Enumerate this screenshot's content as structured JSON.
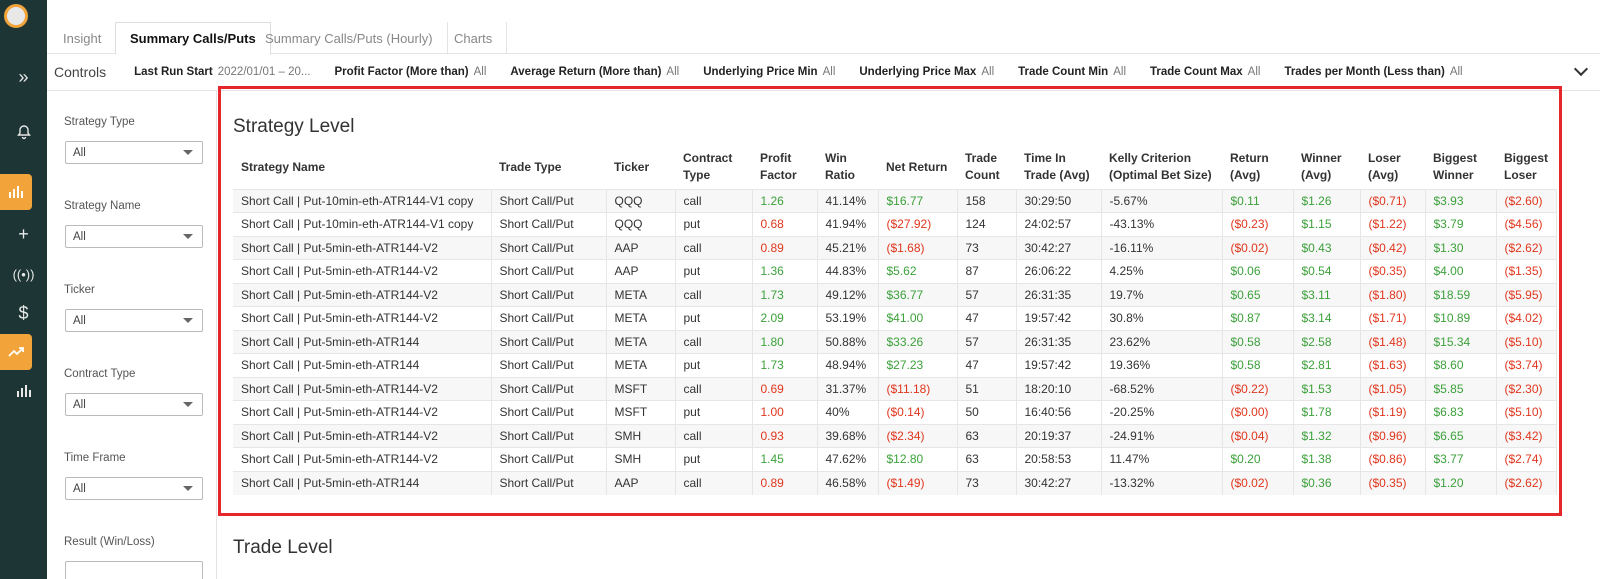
{
  "tabs": [
    "Insight",
    "Summary Calls/Puts",
    "Summary Calls/Puts (Hourly)",
    "Charts"
  ],
  "controls": {
    "title": "Controls",
    "fields": [
      {
        "label": "Last Run Start",
        "value": "2022/01/01 – 20..."
      },
      {
        "label": "Profit Factor (More than)",
        "value": "All"
      },
      {
        "label": "Average Return (More than)",
        "value": "All"
      },
      {
        "label": "Underlying Price Min",
        "value": "All"
      },
      {
        "label": "Underlying Price Max",
        "value": "All"
      },
      {
        "label": "Trade Count Min",
        "value": "All"
      },
      {
        "label": "Trade Count Max",
        "value": "All"
      },
      {
        "label": "Trades per Month (Less than)",
        "value": "All"
      }
    ]
  },
  "filters": [
    {
      "label": "Strategy Type",
      "value": "All"
    },
    {
      "label": "Strategy Name",
      "value": "All"
    },
    {
      "label": "Ticker",
      "value": "All"
    },
    {
      "label": "Contract Type",
      "value": "All"
    },
    {
      "label": "Time Frame",
      "value": "All"
    },
    {
      "label": "Result (Win/Loss)",
      "value": ""
    }
  ],
  "strategy_level": {
    "title": "Strategy Level",
    "columns": [
      "Strategy Name",
      "Trade Type",
      "Ticker",
      "Contract Type",
      "Profit Factor",
      "Win Ratio",
      "Net Return",
      "Trade Count",
      "Time In Trade (Avg)",
      "Kelly Criterion (Optimal Bet Size)",
      "Return (Avg)",
      "Winner (Avg)",
      "Loser (Avg)",
      "Biggest Winner",
      "Biggest Loser"
    ],
    "rows": [
      [
        "Short Call | Put-10min-eth-ATR144-V1 copy",
        "Short Call/Put",
        "QQQ",
        "call",
        "1.26",
        "41.14%",
        "$16.77",
        "158",
        "30:29:50",
        "-5.67%",
        "$0.11",
        "$1.26",
        "($0.71)",
        "$3.93",
        "($2.60)"
      ],
      [
        "Short Call | Put-10min-eth-ATR144-V1 copy",
        "Short Call/Put",
        "QQQ",
        "put",
        "0.68",
        "41.94%",
        "($27.92)",
        "124",
        "24:02:57",
        "-43.13%",
        "($0.23)",
        "$1.15",
        "($1.22)",
        "$3.79",
        "($4.56)"
      ],
      [
        "Short Call | Put-5min-eth-ATR144-V2",
        "Short Call/Put",
        "AAP",
        "call",
        "0.89",
        "45.21%",
        "($1.68)",
        "73",
        "30:42:27",
        "-16.11%",
        "($0.02)",
        "$0.43",
        "($0.42)",
        "$1.30",
        "($2.62)"
      ],
      [
        "Short Call | Put-5min-eth-ATR144-V2",
        "Short Call/Put",
        "AAP",
        "put",
        "1.36",
        "44.83%",
        "$5.62",
        "87",
        "26:06:22",
        "4.25%",
        "$0.06",
        "$0.54",
        "($0.35)",
        "$4.00",
        "($1.35)"
      ],
      [
        "Short Call | Put-5min-eth-ATR144-V2",
        "Short Call/Put",
        "META",
        "call",
        "1.73",
        "49.12%",
        "$36.77",
        "57",
        "26:31:35",
        "19.7%",
        "$0.65",
        "$3.11",
        "($1.80)",
        "$18.59",
        "($5.95)"
      ],
      [
        "Short Call | Put-5min-eth-ATR144-V2",
        "Short Call/Put",
        "META",
        "put",
        "2.09",
        "53.19%",
        "$41.00",
        "47",
        "19:57:42",
        "30.8%",
        "$0.87",
        "$3.14",
        "($1.71)",
        "$10.89",
        "($4.02)"
      ],
      [
        "Short Call | Put-5min-eth-ATR144",
        "Short Call/Put",
        "META",
        "call",
        "1.80",
        "50.88%",
        "$33.26",
        "57",
        "26:31:35",
        "23.62%",
        "$0.58",
        "$2.58",
        "($1.48)",
        "$15.34",
        "($5.10)"
      ],
      [
        "Short Call | Put-5min-eth-ATR144",
        "Short Call/Put",
        "META",
        "put",
        "1.73",
        "48.94%",
        "$27.23",
        "47",
        "19:57:42",
        "19.36%",
        "$0.58",
        "$2.81",
        "($1.63)",
        "$8.60",
        "($3.74)"
      ],
      [
        "Short Call | Put-5min-eth-ATR144-V2",
        "Short Call/Put",
        "MSFT",
        "call",
        "0.69",
        "31.37%",
        "($11.18)",
        "51",
        "18:20:10",
        "-68.52%",
        "($0.22)",
        "$1.53",
        "($1.05)",
        "$5.85",
        "($2.30)"
      ],
      [
        "Short Call | Put-5min-eth-ATR144-V2",
        "Short Call/Put",
        "MSFT",
        "put",
        "1.00",
        "40%",
        "($0.14)",
        "50",
        "16:40:56",
        "-20.25%",
        "($0.00)",
        "$1.78",
        "($1.19)",
        "$6.83",
        "($5.10)"
      ],
      [
        "Short Call | Put-5min-eth-ATR144-V2",
        "Short Call/Put",
        "SMH",
        "call",
        "0.93",
        "39.68%",
        "($2.34)",
        "63",
        "20:19:37",
        "-24.91%",
        "($0.04)",
        "$1.32",
        "($0.96)",
        "$6.65",
        "($3.42)"
      ],
      [
        "Short Call | Put-5min-eth-ATR144-V2",
        "Short Call/Put",
        "SMH",
        "put",
        "1.45",
        "47.62%",
        "$12.80",
        "63",
        "20:58:53",
        "11.47%",
        "$0.20",
        "$1.38",
        "($0.86)",
        "$3.77",
        "($2.74)"
      ],
      [
        "Short Call | Put-5min-eth-ATR144",
        "Short Call/Put",
        "AAP",
        "call",
        "0.89",
        "46.58%",
        "($1.49)",
        "73",
        "30:42:27",
        "-13.32%",
        "($0.02)",
        "$0.36",
        "($0.35)",
        "$1.20",
        "($2.62)"
      ]
    ]
  },
  "trade_level": {
    "title": "Trade Level"
  },
  "colors": {
    "positive": "#3ca13a",
    "negative": "#e0361d",
    "accent": "#f2a33a",
    "rail": "#1d3534",
    "highlight_border": "#e5262a"
  },
  "rail_icons": [
    "logo-icon",
    "expand-icon",
    "bell-icon",
    "bar-chart-icon",
    "plus-icon",
    "broadcast-icon",
    "dollar-icon",
    "trend-icon",
    "bar-chart-icon"
  ]
}
